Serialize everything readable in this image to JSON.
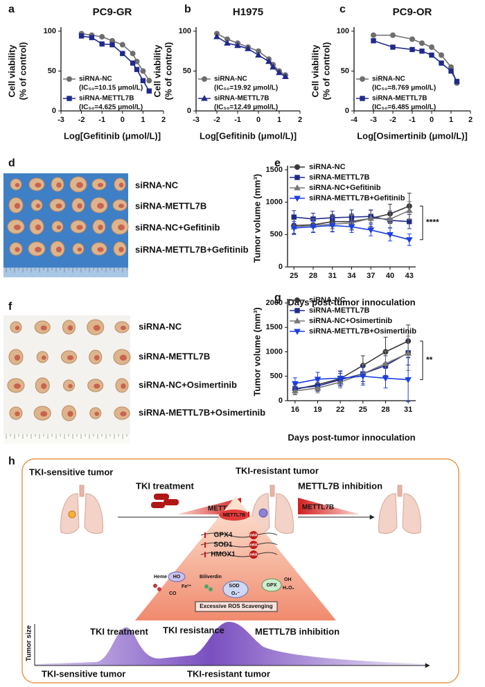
{
  "chart_data": [
    {
      "type": "line",
      "panel": "a",
      "title": "PC9-GR",
      "xlabel": "Log[Gefitinib (μmol/L)]",
      "ylabel": [
        "Cell viability",
        "(% of control)"
      ],
      "x": [
        -2,
        -1.5,
        -1,
        -0.5,
        0,
        0.5,
        0.7,
        1,
        1.3
      ],
      "xlim": [
        -3,
        2
      ],
      "xticks": [
        -3,
        -2,
        -1,
        0,
        1,
        2
      ],
      "ylim": [
        0,
        100
      ],
      "yticks": [
        0,
        50,
        100
      ],
      "series": [
        {
          "name": "siRNA-NC",
          "ic50_label": "(IC₅₀=10.15 μmol/L)",
          "color": "#6e6e6e",
          "marker": "circle",
          "values": [
            97,
            95,
            93,
            88,
            83,
            72,
            62,
            50,
            38
          ]
        },
        {
          "name": "siRNA-METTL7B",
          "ic50_label": "(IC₅₀=4.625 μmol/L)",
          "color": "#1f2a8a",
          "marker": "square",
          "values": [
            94,
            92,
            84,
            83,
            72,
            60,
            52,
            38,
            25
          ]
        }
      ]
    },
    {
      "type": "line",
      "panel": "b",
      "title": "H1975",
      "xlabel": "Log[Gefitinib (μmol/L)]",
      "ylabel": [
        "Cell viability",
        "(% of control)"
      ],
      "x": [
        -2,
        -1.5,
        -1,
        -0.5,
        0,
        0.5,
        0.7,
        1,
        1.3
      ],
      "xlim": [
        -3,
        2
      ],
      "xticks": [
        -3,
        -2,
        -1,
        0,
        1,
        2
      ],
      "ylim": [
        0,
        100
      ],
      "yticks": [
        0,
        50,
        100
      ],
      "series": [
        {
          "name": "siRNA-NC",
          "ic50_label": "(IC₅₀=19.92 μmol/L)",
          "color": "#6e6e6e",
          "marker": "circle",
          "values": [
            97,
            90,
            85,
            80,
            75,
            65,
            58,
            50,
            45
          ]
        },
        {
          "name": "siRNA-METTL7B",
          "ic50_label": "(IC₅₀=12.49 μmol/L)",
          "color": "#1f2a8a",
          "marker": "triangle",
          "values": [
            93,
            85,
            82,
            78,
            70,
            62,
            55,
            48,
            43
          ]
        }
      ]
    },
    {
      "type": "line",
      "panel": "c",
      "title": "PC9-OR",
      "xlabel": "Log[Osimertinib (μmol/L)]",
      "ylabel": [
        "Cell viability",
        "(% of control)"
      ],
      "x": [
        -3,
        -2,
        -1,
        -0.5,
        0,
        0.5,
        1,
        1.3
      ],
      "xlim": [
        -4,
        2
      ],
      "xticks": [
        -4,
        -3,
        -2,
        -1,
        0,
        1,
        2
      ],
      "ylim": [
        0,
        100
      ],
      "yticks": [
        0,
        50,
        100
      ],
      "series": [
        {
          "name": "siRNA-NC",
          "ic50_label": "(IC₅₀=8.769 μmol/L)",
          "color": "#6e6e6e",
          "marker": "circle",
          "values": [
            95,
            95,
            90,
            85,
            80,
            70,
            55,
            35
          ]
        },
        {
          "name": "siRNA-METTL7B",
          "ic50_label": "(IC₅₀=6.485 μmol/L)",
          "color": "#1f2a8a",
          "marker": "square",
          "values": [
            88,
            80,
            77,
            75,
            70,
            60,
            50,
            37
          ]
        }
      ]
    },
    {
      "type": "line",
      "panel": "e",
      "xlabel": "Days post-tumor innoculation",
      "ylabel": [
        "Tumor volume (mm³)"
      ],
      "x": [
        25,
        28,
        31,
        34,
        37,
        40,
        43
      ],
      "xlim": [
        24,
        44
      ],
      "xticks": [
        25,
        28,
        31,
        34,
        37,
        40,
        43
      ],
      "ylim": [
        0,
        1500
      ],
      "yticks": [
        0,
        500,
        1000,
        1500
      ],
      "annotation": "****",
      "series": [
        {
          "name": "siRNA-NC",
          "color": "#3a3a3a",
          "marker": "circle",
          "values": [
            640,
            650,
            700,
            700,
            750,
            820,
            940
          ],
          "errors": [
            120,
            110,
            110,
            120,
            130,
            150,
            200
          ]
        },
        {
          "name": "siRNA-METTL7B",
          "color": "#1f2a8a",
          "marker": "square",
          "values": [
            770,
            740,
            760,
            770,
            780,
            720,
            700
          ],
          "errors": [
            100,
            90,
            100,
            110,
            100,
            120,
            110
          ]
        },
        {
          "name": "siRNA-NC+Gefitinib",
          "color": "#777777",
          "marker": "triangle",
          "values": [
            620,
            640,
            660,
            680,
            750,
            740,
            870
          ],
          "errors": [
            110,
            100,
            110,
            120,
            120,
            130,
            140
          ]
        },
        {
          "name": "siRNA-METTL7B+Gefitinib",
          "color": "#1c3fe0",
          "marker": "triangle-down",
          "values": [
            600,
            620,
            640,
            620,
            570,
            500,
            420
          ],
          "errors": [
            100,
            90,
            100,
            90,
            90,
            100,
            90
          ]
        }
      ]
    },
    {
      "type": "line",
      "panel": "g",
      "xlabel": "Days post-tumor innoculation",
      "ylabel": [
        "Tumor volume (mm³)"
      ],
      "x": [
        16,
        19,
        22,
        25,
        28,
        31
      ],
      "xlim": [
        15,
        32
      ],
      "xticks": [
        16,
        19,
        22,
        25,
        28,
        31
      ],
      "ylim": [
        0,
        2000
      ],
      "yticks": [
        0,
        500,
        1000,
        1500,
        2000
      ],
      "annotation": "**",
      "series": [
        {
          "name": "siRNA-NC",
          "color": "#3a3a3a",
          "marker": "circle",
          "values": [
            230,
            330,
            450,
            720,
            1000,
            1220
          ],
          "errors": [
            100,
            120,
            150,
            200,
            300,
            330
          ]
        },
        {
          "name": "siRNA-METTL7B",
          "color": "#1f2a8a",
          "marker": "square",
          "values": [
            250,
            300,
            430,
            550,
            720,
            980
          ],
          "errors": [
            90,
            110,
            130,
            160,
            200,
            250
          ]
        },
        {
          "name": "siRNA-NC+Osimertinib",
          "color": "#777777",
          "marker": "triangle",
          "values": [
            200,
            260,
            380,
            550,
            760,
            970
          ],
          "errors": [
            80,
            100,
            120,
            200,
            250,
            350
          ]
        },
        {
          "name": "siRNA-METTL7B+Osimertinib",
          "color": "#1c3fe0",
          "marker": "triangle-down",
          "values": [
            350,
            440,
            460,
            500,
            460,
            430
          ],
          "errors": [
            120,
            140,
            150,
            180,
            200,
            450
          ]
        }
      ]
    }
  ],
  "photo_panels": [
    {
      "panel": "d",
      "labels": [
        "siRNA-NC",
        "siRNA-METTL7B",
        "siRNA-NC+Gefitinib",
        "siRNA-METTL7B+Gefitinib"
      ]
    },
    {
      "panel": "f",
      "labels": [
        "siRNA-NC",
        "siRNA-METTL7B",
        "siRNA-NC+Osimertinib",
        "siRNA-METTL7B+Osimertinib"
      ]
    }
  ],
  "diagram": {
    "panel": "h",
    "top": {
      "sensitive": "TKI-sensitive tumor",
      "treatment": "TKI treatment",
      "wedge1": "METTL7B",
      "resistant": "TKI-resistant tumor",
      "inhibition": "METTL7B inhibition",
      "wedge2": "METTL7B"
    },
    "pathway": {
      "driver": "METTL7B",
      "genes": [
        "GPX4",
        "SOD1",
        "HMOX1"
      ],
      "mark": [
        "m6A",
        "m6A",
        "m6A"
      ],
      "heme": "Heme",
      "ho": "HO",
      "fe": "Fe²⁺",
      "co": "CO",
      "biliverdin": "Biliverdin",
      "sod": "SOD",
      "superoxide": "O₂⁻",
      "gpx": "GPX",
      "oh": "OH",
      "h2o2": "H₂O₂",
      "result": "Excessive ROS Scavenging"
    },
    "timeline": {
      "ylabel": "Tumor size",
      "treatment": "TKI treatment",
      "resistance": "TKI resistance",
      "inhibition": "METTL7B inhibition",
      "sensitive": "TKI-sensitive tumor",
      "resistant": "TKI-resistant tumor"
    }
  }
}
